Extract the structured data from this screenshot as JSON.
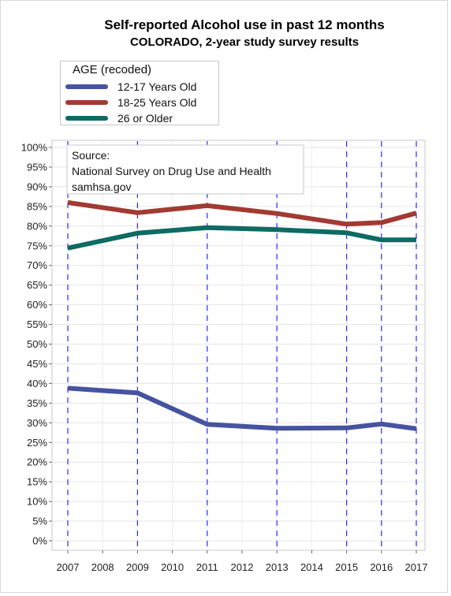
{
  "chart_data": {
    "type": "line",
    "title": "Self-reported Alcohol use in past 12 months",
    "subtitle": "COLORADO, 2-year study survey results",
    "legend": {
      "title": "AGE (recoded)",
      "placement": "top-left"
    },
    "x": [
      2007,
      2009,
      2011,
      2013,
      2015,
      2016,
      2017
    ],
    "series": [
      {
        "name": "12-17 Years Old",
        "color": "#4653a0",
        "values": [
          38.8,
          37.6,
          29.6,
          28.6,
          28.7,
          29.7,
          28.5
        ]
      },
      {
        "name": "18-25 Years Old",
        "color": "#a23a32",
        "values": [
          86.0,
          83.4,
          85.2,
          83.2,
          80.5,
          80.9,
          83.3
        ]
      },
      {
        "name": "26 or Older",
        "color": "#0d6b63",
        "values": [
          74.4,
          78.2,
          79.6,
          79.1,
          78.3,
          76.5,
          76.5
        ]
      }
    ],
    "xticks": [
      "2007",
      "2008",
      "2009",
      "2010",
      "2011",
      "2012",
      "2013",
      "2014",
      "2015",
      "2016",
      "2017"
    ],
    "xlim": [
      2007,
      2017
    ],
    "ylim": [
      0,
      100
    ],
    "yticks": [
      "0%",
      "5%",
      "10%",
      "15%",
      "20%",
      "25%",
      "30%",
      "35%",
      "40%",
      "45%",
      "50%",
      "55%",
      "60%",
      "65%",
      "70%",
      "75%",
      "80%",
      "85%",
      "90%",
      "95%",
      "100%"
    ],
    "grid": true,
    "reference_lines_x": [
      2007,
      2009,
      2011,
      2013,
      2015,
      2016,
      2017
    ],
    "annotation": [
      "Source:",
      "National Survey on Drug Use and Health",
      "samhsa.gov"
    ]
  }
}
